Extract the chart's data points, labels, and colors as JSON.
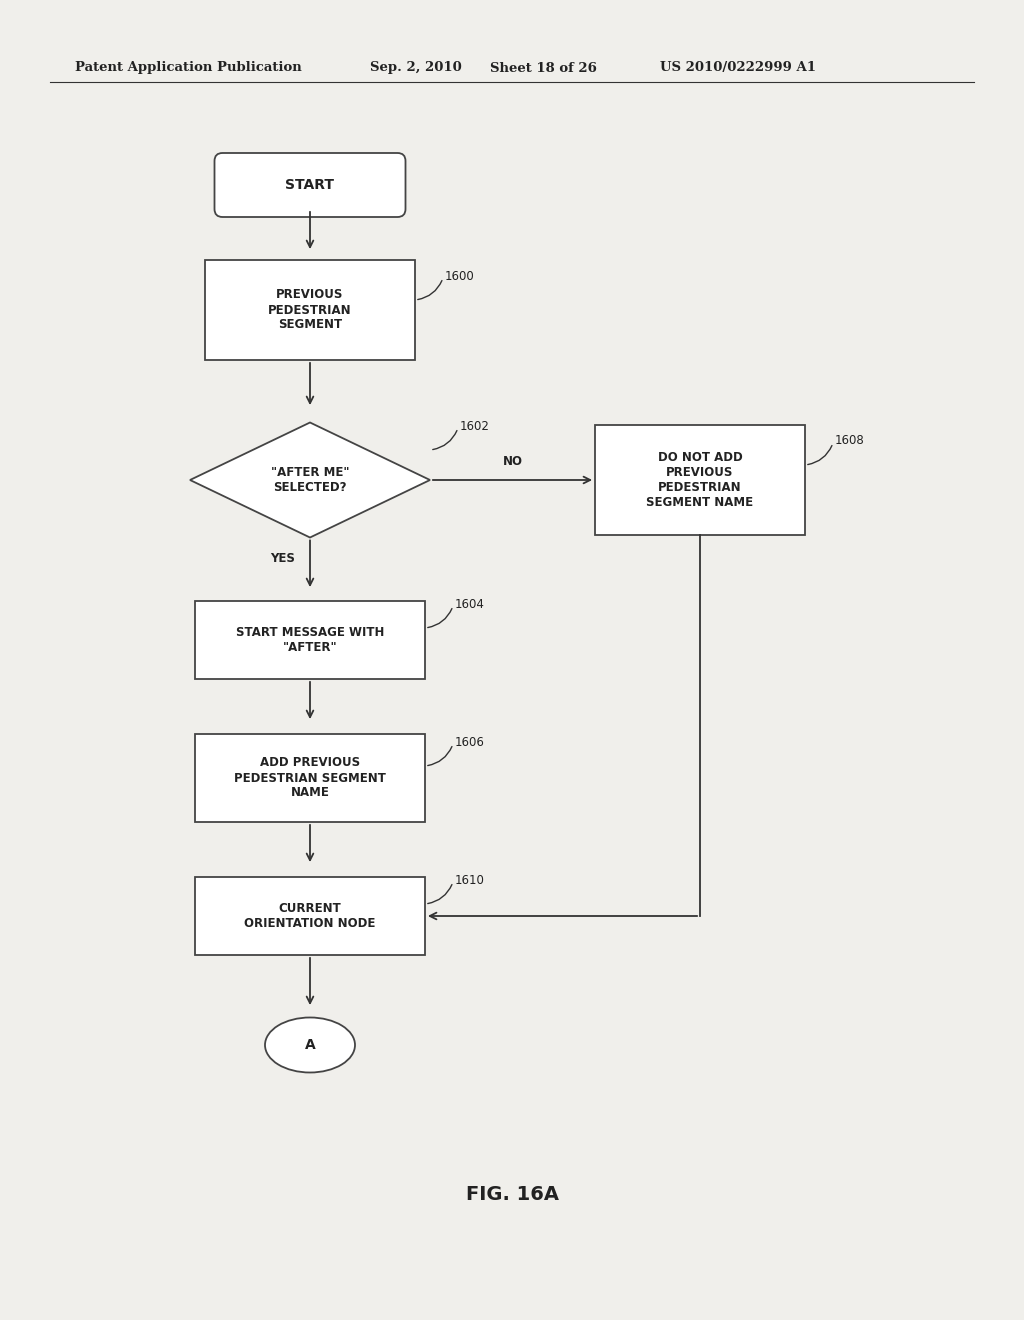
{
  "bg_color": "#f0efeb",
  "header_text": "Patent Application Publication",
  "header_date": "Sep. 2, 2010",
  "header_sheet": "Sheet 18 of 26",
  "header_patent": "US 2010/0222999 A1",
  "fig_label": "FIG. 16A",
  "line_color": "#333333",
  "box_edge_color": "#444444",
  "text_color": "#222222"
}
